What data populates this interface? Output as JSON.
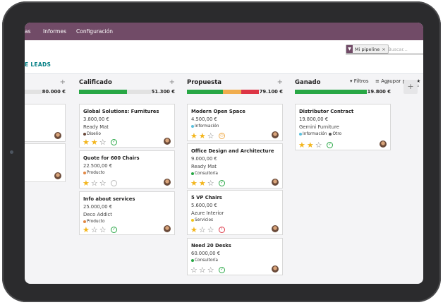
{
  "topbar": {
    "items": [
      "as",
      "Informes",
      "Configuración"
    ]
  },
  "control_panel": {
    "breadcrumb": "E LEADS",
    "facet": "Mi pipeline",
    "search_placeholder": "Buscar...",
    "filters_label": "Filtros",
    "groupby_label": "Agrupar por",
    "favorites_label": "F",
    "add_column_label": "+"
  },
  "columns": [
    {
      "name": "",
      "total": "80.000 €",
      "progress": [
        {
          "frac": 0.5,
          "color": "#28a745"
        }
      ],
      "cards": [
        {
          "title": "",
          "price": "",
          "company": "",
          "tags": [],
          "stars": 0,
          "activity": "none"
        },
        {
          "title": "",
          "price": "",
          "company": "",
          "tags": [],
          "stars": 0,
          "activity": "none"
        }
      ]
    },
    {
      "name": "Calificado",
      "total": "51.300 €",
      "progress": [
        {
          "frac": 0.67,
          "color": "#28a745"
        }
      ],
      "cards": [
        {
          "title": "Global Solutions: Furnitures",
          "price": "3.800,00 €",
          "company": "Ready Mat",
          "tags": [
            {
              "label": "Diseño",
              "color": "#6a4a3a"
            }
          ],
          "stars": 2,
          "activity": "ok"
        },
        {
          "title": "Quote for 600 Chairs",
          "price": "22.500,00 €",
          "company": "",
          "tags": [
            {
              "label": "Producto",
              "color": "#e28743"
            }
          ],
          "stars": 1,
          "activity": "none"
        },
        {
          "title": "Info about services",
          "price": "25.000,00 €",
          "company": "Deco Addict",
          "tags": [
            {
              "label": "Producto",
              "color": "#e28743"
            }
          ],
          "stars": 1,
          "activity": "ok"
        }
      ]
    },
    {
      "name": "Propuesta",
      "total": "79.100 €",
      "progress": [
        {
          "frac": 0.5,
          "color": "#28a745"
        },
        {
          "frac": 0.25,
          "color": "#f0ad4e"
        },
        {
          "frac": 0.25,
          "color": "#dc3545"
        }
      ],
      "cards": [
        {
          "title": "Modern Open Space",
          "price": "4.500,00 €",
          "company": "",
          "tags": [
            {
              "label": "Información",
              "color": "#5bc0de"
            }
          ],
          "stars": 2,
          "activity": "warn"
        },
        {
          "title": "Office Design and Architecture",
          "price": "9.000,00 €",
          "company": "Ready Mat",
          "tags": [
            {
              "label": "Consultoría",
              "color": "#28a745"
            }
          ],
          "stars": 2,
          "activity": "ok"
        },
        {
          "title": "5 VP Chairs",
          "price": "5.600,00 €",
          "company": "Azure Interior",
          "tags": [
            {
              "label": "Servicios",
              "color": "#f0c419"
            }
          ],
          "stars": 1,
          "activity": "late"
        },
        {
          "title": "Need 20 Desks",
          "price": "60.000,00 €",
          "company": "",
          "tags": [
            {
              "label": "Consultoría",
              "color": "#28a745"
            }
          ],
          "stars": 0,
          "activity": "ok"
        }
      ]
    },
    {
      "name": "Ganado",
      "total": "19.800 €",
      "progress": [
        {
          "frac": 1.0,
          "color": "#28a745"
        }
      ],
      "cards": [
        {
          "title": "Distributor Contract",
          "price": "19.800,00 €",
          "company": "Gemini Furniture",
          "tags": [
            {
              "label": "Información",
              "color": "#5bc0de"
            },
            {
              "label": "Otro",
              "color": "#555555"
            }
          ],
          "stars": 2,
          "activity": "ok"
        }
      ]
    }
  ],
  "icons": {
    "star_filled": "★",
    "star_empty": "☆",
    "activity_ok": "✓",
    "activity_warn": "◷",
    "activity_late": "!",
    "plus": "+"
  },
  "colors": {
    "brand": "#714b67",
    "accent": "#017e84",
    "star": "#f3b51c"
  }
}
